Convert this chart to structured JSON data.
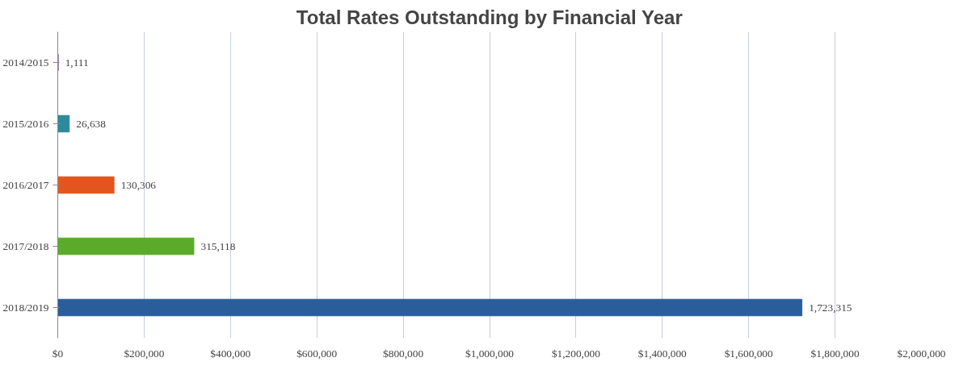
{
  "chart_data": {
    "type": "bar",
    "orientation": "horizontal",
    "title": "Total Rates Outstanding by Financial Year",
    "categories": [
      "2014/2015",
      "2015/2016",
      "2016/2017",
      "2017/2018",
      "2018/2019"
    ],
    "values": [
      1111,
      26638,
      130306,
      315118,
      1723315
    ],
    "colors": [
      "#6a4c93",
      "#2b8a9c",
      "#e2561e",
      "#5bab2b",
      "#2a5d9c"
    ],
    "xlim": [
      0,
      2000000
    ],
    "xticks": [
      {
        "value": 0,
        "label": "$0"
      },
      {
        "value": 200000,
        "label": "$200,000"
      },
      {
        "value": 400000,
        "label": "$400,000"
      },
      {
        "value": 600000,
        "label": "$600,000"
      },
      {
        "value": 800000,
        "label": "$800,000"
      },
      {
        "value": 1000000,
        "label": "$1,000,000"
      },
      {
        "value": 1200000,
        "label": "$1,200,000"
      },
      {
        "value": 1400000,
        "label": "$1,400,000"
      },
      {
        "value": 1600000,
        "label": "$1,600,000"
      },
      {
        "value": 1800000,
        "label": "$1,800,000"
      },
      {
        "value": 2000000,
        "label": "$2,000,000"
      }
    ],
    "grid": "x",
    "value_labels": [
      "1,111",
      "26,638",
      "130,306",
      "315,118",
      "1,723,315"
    ]
  }
}
